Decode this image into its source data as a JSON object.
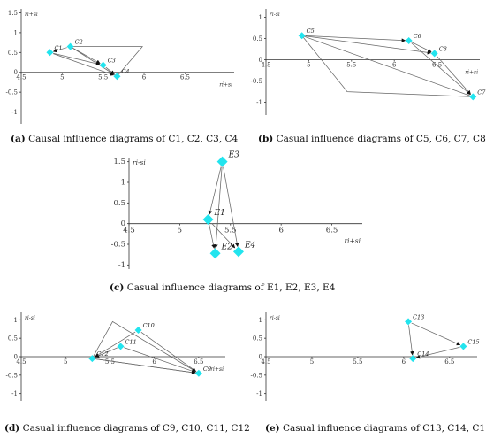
{
  "figure_panels": [
    {
      "id": "a",
      "caption_letter": "(a)",
      "caption_text": "Causal influence diagrams of C1, C2, C3, C4",
      "y_axis_label": "ri+si",
      "x_axis_label": "ri+si",
      "x_ticks": [
        "4.5",
        "5",
        "5.5",
        "6",
        "6.5"
      ],
      "y_ticks": [
        "1.5",
        "1",
        "0.5",
        "0",
        "-0.5",
        "-1"
      ],
      "xlim": [
        4.5,
        7.1
      ],
      "ylim": [
        -1.3,
        1.6
      ],
      "nodes": [
        {
          "label": "C1",
          "x": 4.85,
          "y": 0.5
        },
        {
          "label": "C2",
          "x": 5.1,
          "y": 0.65
        },
        {
          "label": "C3",
          "x": 5.5,
          "y": 0.18
        },
        {
          "label": "C4",
          "x": 5.67,
          "y": -0.1
        }
      ],
      "polygons": [
        [
          [
            5.1,
            0.65
          ],
          [
            5.98,
            0.65
          ],
          [
            5.67,
            -0.1
          ]
        ]
      ],
      "arrows": [
        [
          1,
          0
        ],
        [
          0,
          3
        ],
        [
          0,
          2
        ],
        [
          1,
          2
        ],
        [
          2,
          3
        ]
      ]
    },
    {
      "id": "b",
      "caption_letter": "(b)",
      "caption_text": "Casual influence diagrams of C5, C6, C7, C8",
      "y_axis_label": "ri-si",
      "x_axis_label": "ri+si",
      "x_ticks": [
        "4.5",
        "5",
        "5.5",
        "6",
        "6.5"
      ],
      "y_ticks": [
        "1",
        "0.5",
        "0",
        "-0.5",
        "-1"
      ],
      "xlim": [
        4.5,
        7.0
      ],
      "ylim": [
        -1.3,
        1.2
      ],
      "nodes": [
        {
          "label": "C5",
          "x": 4.92,
          "y": 0.57
        },
        {
          "label": "C6",
          "x": 6.17,
          "y": 0.45
        },
        {
          "label": "C8",
          "x": 6.47,
          "y": 0.15
        },
        {
          "label": "C7",
          "x": 6.92,
          "y": -0.87
        }
      ],
      "polygons": [
        [
          [
            4.92,
            0.57
          ],
          [
            5.45,
            -0.75
          ],
          [
            6.92,
            -0.87
          ]
        ]
      ],
      "arrows": [
        [
          0,
          1
        ],
        [
          0,
          2
        ],
        [
          1,
          2
        ],
        [
          2,
          3
        ],
        [
          1,
          3
        ]
      ]
    },
    {
      "id": "c",
      "caption_letter": "(c)",
      "caption_text": "Casual influence diagrams of E1, E2, E3, E4",
      "y_axis_label": "ri-si",
      "x_axis_label": "ri+si",
      "x_ticks": [
        "4.5",
        "5",
        "5.5",
        "6",
        "6.5"
      ],
      "y_ticks": [
        "1.5",
        "1",
        "0.5",
        "0",
        "-0.5",
        "-1"
      ],
      "xlim": [
        4.5,
        6.8
      ],
      "ylim": [
        -1.1,
        1.6
      ],
      "nodes": [
        {
          "label": "E3",
          "x": 5.42,
          "y": 1.5
        },
        {
          "label": "E1",
          "x": 5.28,
          "y": 0.1
        },
        {
          "label": "E2",
          "x": 5.35,
          "y": -0.72
        },
        {
          "label": "E4",
          "x": 5.58,
          "y": -0.68
        }
      ],
      "polygons": [],
      "arrows": [
        [
          0,
          1
        ],
        [
          0,
          2
        ],
        [
          0,
          3
        ],
        [
          1,
          2
        ],
        [
          1,
          3
        ]
      ]
    },
    {
      "id": "d",
      "caption_letter": "(d)",
      "caption_text": "Casual influence diagrams of C9, C10, C11, C12",
      "y_axis_label": "ri-si",
      "x_axis_label": "ri+si",
      "x_ticks": [
        "4.5",
        "5",
        "5.5",
        "6",
        "6.5"
      ],
      "y_ticks": [
        "1",
        "0.5",
        "0",
        "-0.5",
        "-1"
      ],
      "xlim": [
        4.5,
        6.8
      ],
      "ylim": [
        -1.2,
        1.2
      ],
      "nodes": [
        {
          "label": "C10",
          "x": 5.82,
          "y": 0.72
        },
        {
          "label": "C11",
          "x": 5.62,
          "y": 0.28
        },
        {
          "label": "C12",
          "x": 5.3,
          "y": -0.05
        },
        {
          "label": "C9",
          "x": 6.5,
          "y": -0.45
        }
      ],
      "polygons": [
        [
          [
            5.3,
            -0.05
          ],
          [
            5.53,
            0.95
          ],
          [
            6.5,
            -0.45
          ]
        ]
      ],
      "arrows": [
        [
          0,
          2
        ],
        [
          1,
          2
        ],
        [
          0,
          3
        ],
        [
          1,
          3
        ],
        [
          2,
          3
        ]
      ]
    },
    {
      "id": "e",
      "caption_letter": "(e)",
      "caption_text": "Casual influence diagrams of C13, C14, C15",
      "y_axis_label": "ri-si",
      "x_axis_label": "",
      "x_ticks": [
        "4.5",
        "5",
        "5.5",
        "6",
        "6.5"
      ],
      "y_ticks": [
        "1",
        "0.5",
        "0",
        "-0.5",
        "-1"
      ],
      "xlim": [
        4.5,
        6.8
      ],
      "ylim": [
        -1.2,
        1.2
      ],
      "nodes": [
        {
          "label": "C13",
          "x": 6.05,
          "y": 0.95
        },
        {
          "label": "C15",
          "x": 6.65,
          "y": 0.28
        },
        {
          "label": "C14",
          "x": 6.1,
          "y": -0.05
        }
      ],
      "polygons": [],
      "arrows": [
        [
          0,
          1
        ],
        [
          0,
          2
        ],
        [
          1,
          2
        ]
      ]
    }
  ],
  "node_color": "#22e4ee"
}
